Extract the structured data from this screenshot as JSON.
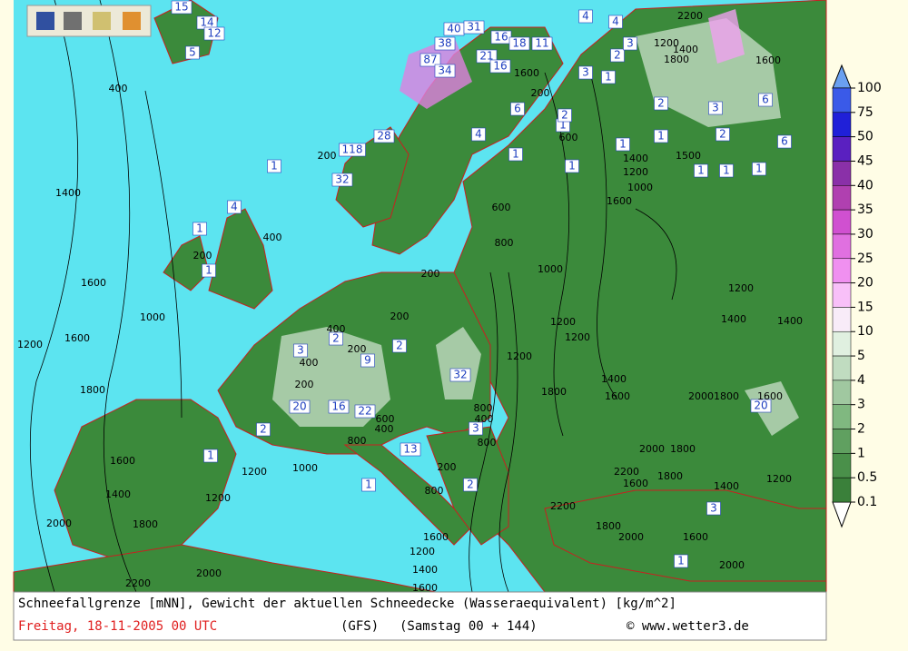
{
  "legend": {
    "labels": [
      "100",
      "75",
      "50",
      "45",
      "40",
      "35",
      "30",
      "25",
      "20",
      "15",
      "10",
      "5",
      "4",
      "3",
      "2",
      "1",
      "0.5",
      "0.1"
    ]
  },
  "caption": {
    "line1": "Schneefallgrenze [mNN], Gewicht der aktuellen Schneedecke (Wasseraequivalent) [kg/m^2]",
    "date": "Freitag, 18-11-2005  00 UTC",
    "model": "(GFS)",
    "run": "(Samstag 00 + 144)",
    "copyright": "© www.wetter3.de"
  },
  "map": {
    "snow_labels": [
      "15",
      "14",
      "12",
      "5",
      "40",
      "31",
      "38",
      "87",
      "34",
      "16",
      "18",
      "11",
      "21",
      "16",
      "6",
      "4",
      "28",
      "118",
      "32",
      "1",
      "4",
      "1",
      "1",
      "2",
      "3",
      "2",
      "9",
      "32",
      "2",
      "20",
      "16",
      "22",
      "3",
      "13",
      "1",
      "1",
      "2",
      "3",
      "1",
      "2",
      "3",
      "2",
      "1",
      "1",
      "1",
      "1",
      "1",
      "6",
      "6",
      "1",
      "2",
      "1",
      "20",
      "2",
      "3",
      "4",
      "4",
      "3",
      "1",
      "1"
    ],
    "contour_labels": [
      "400",
      "1400",
      "1600",
      "1000",
      "1200",
      "1600",
      "1800",
      "400",
      "200",
      "600",
      "800",
      "1000",
      "1200",
      "1200",
      "1200",
      "1400",
      "1600",
      "1800",
      "1600",
      "1400",
      "1200",
      "1000",
      "1500",
      "1800",
      "1600",
      "1200",
      "1400",
      "1400",
      "2000",
      "1800",
      "1600",
      "2000",
      "1800",
      "2200",
      "1600",
      "1800",
      "1400",
      "1200",
      "2000",
      "1800",
      "2000",
      "1600",
      "2200",
      "1600",
      "1400",
      "1200",
      "1800",
      "2000",
      "1200",
      "1000",
      "2000",
      "2200",
      "800",
      "1600",
      "1200",
      "1400",
      "1600",
      "200",
      "200",
      "400",
      "200",
      "400",
      "200",
      "800",
      "800",
      "400",
      "800",
      "200",
      "600",
      "400",
      "200",
      "200",
      "600",
      "1200",
      "1400",
      "2200",
      "1600"
    ]
  }
}
